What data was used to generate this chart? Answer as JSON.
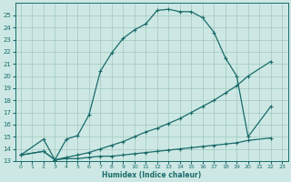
{
  "xlabel": "Humidex (Indice chaleur)",
  "background_color": "#cde8e4",
  "grid_color": "#a0c8c0",
  "line_color": "#1a6b6b",
  "xlim": [
    -0.5,
    23.5
  ],
  "ylim": [
    13,
    26
  ],
  "curve1_x": [
    0,
    2,
    3,
    4,
    5,
    6,
    7,
    8,
    9,
    10,
    11,
    12,
    13,
    14,
    15,
    16,
    17,
    18,
    19,
    20,
    22
  ],
  "curve1_y": [
    13.5,
    14.8,
    13.1,
    14.8,
    15.1,
    16.8,
    20.4,
    21.9,
    23.1,
    23.8,
    24.3,
    25.4,
    25.5,
    25.3,
    25.3,
    24.8,
    23.6,
    21.5,
    20.0,
    15.0,
    17.5
  ],
  "curve2_x": [
    0,
    2,
    3,
    4,
    5,
    6,
    7,
    8,
    9,
    10,
    11,
    12,
    13,
    14,
    15,
    16,
    17,
    18,
    19,
    20,
    22
  ],
  "curve2_y": [
    13.5,
    13.8,
    13.1,
    13.3,
    13.5,
    13.7,
    14.0,
    14.3,
    14.6,
    15.0,
    15.4,
    15.7,
    16.1,
    16.5,
    17.0,
    17.5,
    18.0,
    18.6,
    19.2,
    20.0,
    21.2
  ],
  "curve3_x": [
    0,
    2,
    3,
    4,
    5,
    6,
    7,
    8,
    9,
    10,
    11,
    12,
    13,
    14,
    15,
    16,
    17,
    18,
    19,
    20,
    22
  ],
  "curve3_y": [
    13.5,
    13.8,
    13.1,
    13.2,
    13.2,
    13.3,
    13.4,
    13.4,
    13.5,
    13.6,
    13.7,
    13.8,
    13.9,
    14.0,
    14.1,
    14.2,
    14.3,
    14.4,
    14.5,
    14.7,
    14.9
  ]
}
